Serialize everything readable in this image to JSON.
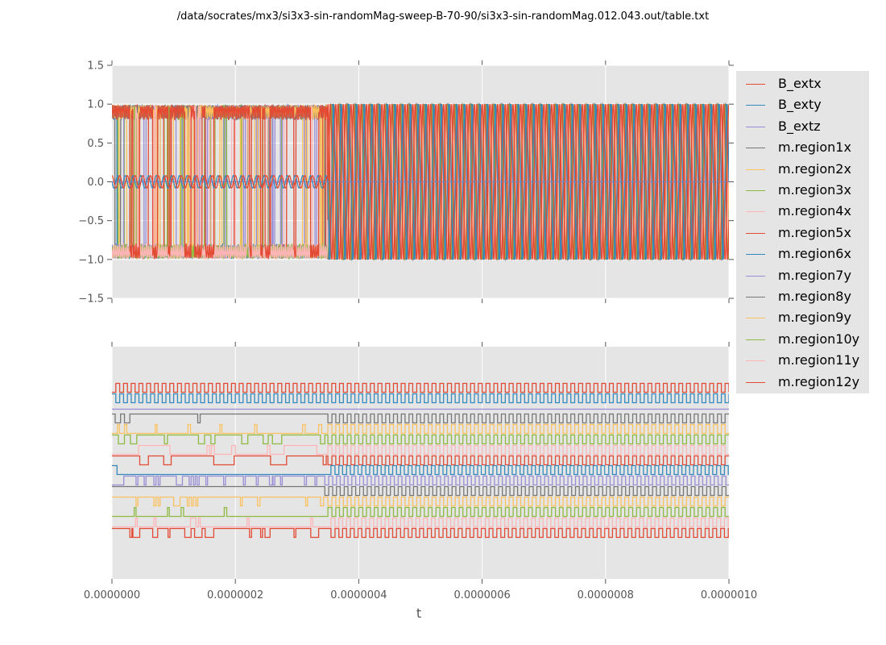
{
  "figure": {
    "title": "/data/socrates/mx3/si3x3-sin-randomMag-sweep-B-70-90/si3x3-sin-randomMag.012.043.out/table.txt"
  },
  "colors": {
    "axes_bg": "#e5e5e5",
    "grid": "#ffffff",
    "tick_text": "#555555"
  },
  "chart_data": [
    {
      "type": "line",
      "panel": "top",
      "title": "",
      "xlabel": "",
      "ylabel": "",
      "xlim": [
        0,
        1e-06
      ],
      "ylim": [
        -1.5,
        1.5
      ],
      "grid": true,
      "yticks": [
        "1.5",
        "1.0",
        "0.5",
        "0.0",
        "−0.5",
        "−1.0",
        "−1.5"
      ],
      "ytick_values": [
        1.5,
        1.0,
        0.5,
        0.0,
        -0.5,
        -1.0,
        -1.5
      ],
      "xticks_labeled": false,
      "description": "B_ext components are sinusoids; B_extx and B_exty oscillate with amplitude ~0.08 around 0 until t~3.5e-7 then with amplitude 1.0; magnetization components switch between ~+0.65..1.0 and ~-0.65..-1.0 irregularly before t~3.5e-7 and oscillate regularly between -1 and 1 afterwards",
      "transition_t": 3.5e-07,
      "series": [
        {
          "name": "B_extx",
          "color": "#E24A33",
          "amplitude_before": 0.08,
          "amplitude_after": 1.0
        },
        {
          "name": "B_exty",
          "color": "#348ABD",
          "amplitude_before": 0.08,
          "amplitude_after": 1.0
        },
        {
          "name": "B_extz",
          "color": "#988ED5",
          "amplitude_before": 0.0,
          "amplitude_after": 0.0
        },
        {
          "name": "m.region1x",
          "color": "#777777",
          "range": [
            -1.0,
            1.0
          ]
        },
        {
          "name": "m.region2x",
          "color": "#FBC15E",
          "range": [
            -1.0,
            1.0
          ]
        },
        {
          "name": "m.region3x",
          "color": "#8EBA42",
          "range": [
            -1.0,
            1.0
          ]
        },
        {
          "name": "m.region4x",
          "color": "#FFB5B8",
          "range": [
            -1.0,
            1.0
          ]
        },
        {
          "name": "m.region5x",
          "color": "#E24A33",
          "range": [
            -1.0,
            1.0
          ]
        },
        {
          "name": "m.region6x",
          "color": "#348ABD",
          "range": [
            -1.0,
            1.0
          ]
        },
        {
          "name": "m.region7y",
          "color": "#988ED5",
          "range": [
            -1.0,
            1.0
          ]
        },
        {
          "name": "m.region8y",
          "color": "#777777",
          "range": [
            -1.0,
            1.0
          ]
        },
        {
          "name": "m.region9y",
          "color": "#FBC15E",
          "range": [
            -1.0,
            1.0
          ]
        },
        {
          "name": "m.region10y",
          "color": "#8EBA42",
          "range": [
            -1.0,
            1.0
          ]
        },
        {
          "name": "m.region11y",
          "color": "#FFB5B8",
          "range": [
            -1.0,
            1.0
          ]
        },
        {
          "name": "m.region12y",
          "color": "#E24A33",
          "range": [
            -1.0,
            1.0
          ]
        }
      ]
    },
    {
      "type": "line",
      "panel": "bottom",
      "title": "",
      "xlabel": "t",
      "ylabel": "",
      "xlim": [
        0,
        1e-06
      ],
      "grid": true,
      "yticks": [],
      "xticks": [
        "0.0000000",
        "0.0000002",
        "0.0000004",
        "0.0000006",
        "0.0000008",
        "0.0000010"
      ],
      "xtick_values": [
        0,
        2e-07,
        4e-07,
        6e-07,
        8e-07,
        1e-06
      ],
      "description": "Digitized (binary, offset-stacked) traces of each series; B_extx/B_exty toggle regularly for the whole range, B_extz flat, regions toggle sparsely before ~3.5e-7 then toggle regularly",
      "transition_t": 3.5e-07,
      "period_t": 1.25e-08,
      "series": [
        {
          "name": "B_extx",
          "color": "#E24A33",
          "regular_from": 0,
          "init": 1,
          "sparse_switches": []
        },
        {
          "name": "B_exty",
          "color": "#348ABD",
          "regular_from": 0,
          "init": 0,
          "sparse_switches": []
        },
        {
          "name": "B_extz",
          "color": "#988ED5",
          "regular_from": null,
          "init": 1,
          "sparse_switches": []
        },
        {
          "name": "m.region1x",
          "color": "#777777",
          "regular_from": 3.5e-07,
          "init": 1,
          "sparse_switches": [
            [
              5e-09,
              1.4e-08
            ],
            [
              2e-08,
              2.9e-08
            ],
            [
              1.39e-07,
              1.43e-07
            ]
          ]
        },
        {
          "name": "m.region2x",
          "color": "#FBC15E",
          "regular_from": 3.5e-07,
          "init": 0,
          "sparse_switches": [
            [
              9e-09,
              1.2e-08
            ],
            [
              2e-08,
              2.4e-08
            ],
            [
              7e-08,
              7.3e-08
            ],
            [
              1.23e-07,
              1.27e-07
            ],
            [
              1.75e-07,
              1.78e-07
            ],
            [
              2.31e-07,
              2.35e-07
            ],
            [
              3.09e-07,
              3.13e-07
            ],
            [
              3.35e-07,
              3.4e-07
            ]
          ]
        },
        {
          "name": "m.region3x",
          "color": "#8EBA42",
          "regular_from": 3.5e-07,
          "init": 1,
          "sparse_switches": [
            [
              1e-08,
              2e-08
            ],
            [
              3e-08,
              4e-08
            ],
            [
              8.5e-08,
              9e-08
            ],
            [
              1.4e-07,
              1.5e-07
            ],
            [
              1.6e-07,
              1.67e-07
            ],
            [
              2.1e-07,
              2.2e-07
            ],
            [
              2.45e-07,
              2.53e-07
            ],
            [
              2.6e-07,
              2.75e-07
            ],
            [
              3.38e-07,
              3.45e-07
            ]
          ]
        },
        {
          "name": "m.region4x",
          "color": "#FFB5B8",
          "regular_from": 3.5e-07,
          "init": 0,
          "sparse_switches": [
            [
              4.3e-08,
              9.4e-08
            ],
            [
              1.54e-07,
              1.58e-07
            ],
            [
              1.61e-07,
              1.66e-07
            ],
            [
              1.94e-07,
              2e-07
            ],
            [
              2.52e-07,
              2.56e-07
            ],
            [
              2.79e-07,
              3.32e-07
            ],
            [
              3.59e-07,
              3.63e-07
            ]
          ]
        },
        {
          "name": "m.region5x",
          "color": "#E24A33",
          "regular_from": 3.5e-07,
          "init": 1,
          "sparse_switches": [
            [
              4.5e-08,
              5.9e-08
            ],
            [
              8.4e-08,
              9.6e-08
            ],
            [
              1.65e-07,
              1.98e-07
            ],
            [
              2.57e-07,
              2.83e-07
            ],
            [
              3.42e-07,
              3.47e-07
            ]
          ]
        },
        {
          "name": "m.region6x",
          "color": "#348ABD",
          "regular_from": 3.55e-07,
          "init": 0,
          "sparse_switches": [
            [
              0,
              8e-09
            ]
          ]
        },
        {
          "name": "m.region7y",
          "color": "#988ED5",
          "regular_from": 3.45e-07,
          "init": 1,
          "sparse_switches": [
            [
              0,
              1.9e-08
            ],
            [
              3.9e-08,
              4.2e-08
            ],
            [
              5.2e-08,
              5.5e-08
            ],
            [
              6.8e-08,
              7.1e-08
            ],
            [
              7.5e-08,
              7.8e-08
            ],
            [
              1.04e-07,
              1.14e-07
            ],
            [
              1.25e-07,
              1.28e-07
            ],
            [
              1.32e-07,
              1.35e-07
            ],
            [
              1.38e-07,
              1.41e-07
            ],
            [
              1.52e-07,
              1.55e-07
            ],
            [
              1.81e-07,
              1.84e-07
            ],
            [
              2.13e-07,
              2.16e-07
            ],
            [
              2.34e-07,
              2.37e-07
            ],
            [
              2.55e-07,
              2.6e-07
            ],
            [
              2.61e-07,
              2.64e-07
            ],
            [
              2.73e-07,
              2.76e-07
            ],
            [
              3.12e-07,
              3.15e-07
            ],
            [
              3.29e-07,
              3.32e-07
            ]
          ]
        },
        {
          "name": "m.region8y",
          "color": "#777777",
          "regular_from": 3.45e-07,
          "init": 1,
          "sparse_switches": []
        },
        {
          "name": "m.region9y",
          "color": "#FBC15E",
          "regular_from": 3.5e-07,
          "init": 1,
          "sparse_switches": [
            [
              9e-09,
              0
            ],
            [
              3.9e-08,
              4.2e-08
            ],
            [
              6.8e-08,
              7.1e-08
            ],
            [
              7.5e-08,
              7.8e-08
            ],
            [
              1e-07,
              1.1e-07
            ],
            [
              1.22e-07,
              1.25e-07
            ],
            [
              1.29e-07,
              1.32e-07
            ],
            [
              1.36e-07,
              1.39e-07
            ],
            [
              2.08e-07,
              2.11e-07
            ],
            [
              2.36e-07,
              2.4e-07
            ],
            [
              3.14e-07,
              3.17e-07
            ],
            [
              3.38e-07,
              3.43e-07
            ]
          ]
        },
        {
          "name": "m.region10y",
          "color": "#8EBA42",
          "regular_from": 3.5e-07,
          "init": 0,
          "sparse_switches": [
            [
              3.6e-08,
              3.9e-08
            ],
            [
              9e-08,
              9.3e-08
            ],
            [
              1.12e-07,
              1.16e-07
            ],
            [
              1.82e-07,
              1.86e-07
            ]
          ]
        },
        {
          "name": "m.region11y",
          "color": "#FFB5B8",
          "regular_from": 3.55e-07,
          "init": 0,
          "sparse_switches": [
            [
              3.8e-08,
              4.1e-08
            ],
            [
              6.8e-08,
              7.1e-08
            ],
            [
              1.27e-07,
              1.36e-07
            ],
            [
              1.4e-07,
              1.43e-07
            ],
            [
              2.19e-07,
              2.22e-07
            ],
            [
              3.22e-07,
              3.25e-07
            ]
          ]
        },
        {
          "name": "m.region12y",
          "color": "#E24A33",
          "regular_from": 3.55e-07,
          "init": 1,
          "sparse_switches": [
            [
              2.9e-08,
              3.2e-08
            ],
            [
              3.4e-08,
              4.5e-08
            ],
            [
              6.6e-08,
              7.4e-08
            ],
            [
              9.1e-08,
              9.4e-08
            ],
            [
              1.18e-07,
              1.28e-07
            ],
            [
              1.34e-07,
              1.46e-07
            ],
            [
              1.51e-07,
              1.65e-07
            ],
            [
              2.23e-07,
              2.26e-07
            ],
            [
              2.41e-07,
              2.44e-07
            ],
            [
              2.48e-07,
              2.56e-07
            ],
            [
              2.95e-07,
              2.98e-07
            ],
            [
              3.22e-07,
              3.35e-07
            ]
          ]
        }
      ]
    }
  ],
  "legend": {
    "placement": "outside-right",
    "items": [
      {
        "label": "B_extx",
        "color": "#E24A33"
      },
      {
        "label": "B_exty",
        "color": "#348ABD"
      },
      {
        "label": "B_extz",
        "color": "#988ED5"
      },
      {
        "label": "m.region1x",
        "color": "#777777"
      },
      {
        "label": "m.region2x",
        "color": "#FBC15E"
      },
      {
        "label": "m.region3x",
        "color": "#8EBA42"
      },
      {
        "label": "m.region4x",
        "color": "#FFB5B8"
      },
      {
        "label": "m.region5x",
        "color": "#E24A33"
      },
      {
        "label": "m.region6x",
        "color": "#348ABD"
      },
      {
        "label": "m.region7y",
        "color": "#988ED5"
      },
      {
        "label": "m.region8y",
        "color": "#777777"
      },
      {
        "label": "m.region9y",
        "color": "#FBC15E"
      },
      {
        "label": "m.region10y",
        "color": "#8EBA42"
      },
      {
        "label": "m.region11y",
        "color": "#FFB5B8"
      },
      {
        "label": "m.region12y",
        "color": "#E24A33"
      }
    ]
  }
}
